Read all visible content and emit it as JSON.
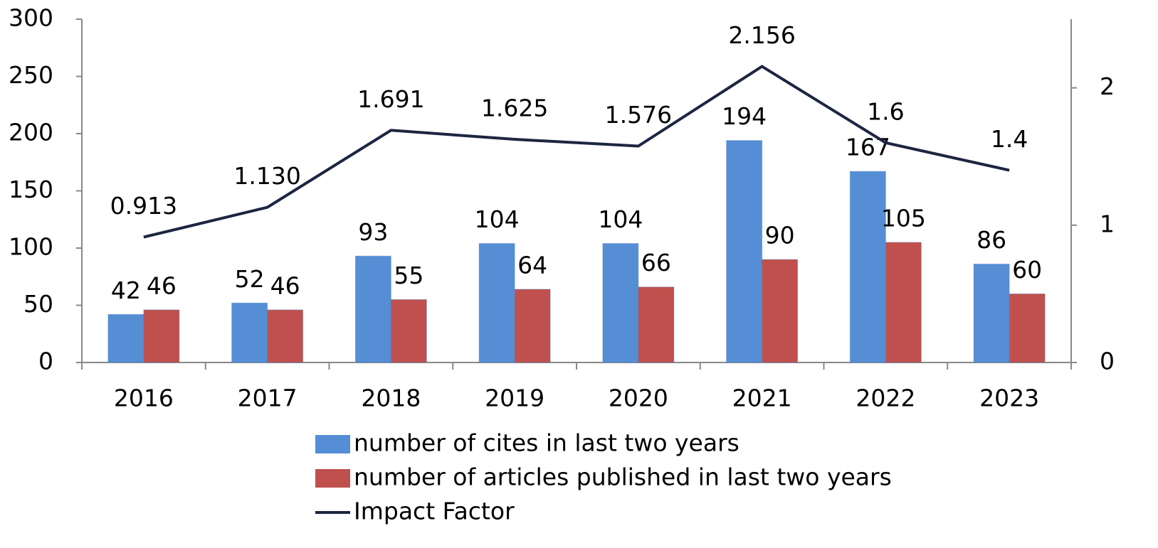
{
  "chart_data": {
    "type": "bar",
    "categories": [
      "2016",
      "2017",
      "2018",
      "2019",
      "2020",
      "2021",
      "2022",
      "2023"
    ],
    "series": [
      {
        "name": "number of cites in last two years",
        "type": "bar",
        "color": "#558ed5",
        "values": [
          42,
          52,
          93,
          104,
          104,
          194,
          167,
          86
        ]
      },
      {
        "name": "number of articles published in last two years",
        "type": "bar",
        "color": "#c0504d",
        "values": [
          46,
          46,
          55,
          64,
          66,
          90,
          105,
          60
        ]
      },
      {
        "name": "Impact Factor",
        "type": "line",
        "axis": "y2",
        "color": "#1c2541",
        "values": [
          0.913,
          1.13,
          1.691,
          1.625,
          1.576,
          2.156,
          1.6,
          1.4
        ],
        "value_labels": [
          "0.913",
          "1.130",
          "1.691",
          "1.625",
          "1.576",
          "2.156",
          "1.6",
          "1.4"
        ]
      }
    ],
    "ylim": [
      0,
      300
    ],
    "yticks": [
      0,
      50,
      100,
      150,
      200,
      250,
      300
    ],
    "y2lim": [
      0,
      2.5
    ],
    "y2ticks": [
      0,
      1,
      2
    ],
    "legend": "bottom"
  }
}
